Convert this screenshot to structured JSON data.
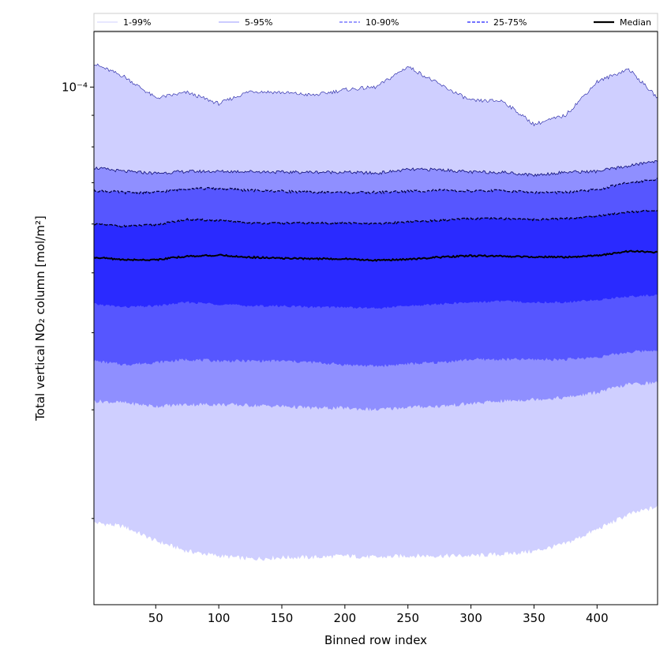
{
  "chart_data": {
    "type": "area",
    "xlabel": "Binned row index",
    "ylabel": "Total vertical NO₂ column [mol/m²]",
    "y_scale": "log",
    "x_range": [
      1,
      448
    ],
    "xticks": [
      50,
      100,
      150,
      200,
      250,
      300,
      350,
      400
    ],
    "y_range": [
      1.45e-05,
      0.000123
    ],
    "y_major_tick_labels": [
      {
        "value": 0.0001,
        "label": "10⁻⁴"
      }
    ],
    "y_minor_ticks": [
      2e-05,
      3e-05,
      4e-05,
      5e-05,
      6e-05,
      7e-05,
      8e-05,
      9e-05
    ],
    "grid": false,
    "legend_placement": "top, spanning full width",
    "legend": [
      {
        "label": "1-99%",
        "color": "#cfcfff",
        "style": "solid-thin"
      },
      {
        "label": "5-95%",
        "color": "#9a9aff",
        "style": "solid-thin"
      },
      {
        "label": "10-90%",
        "color": "#7a7aff",
        "style": "dashed"
      },
      {
        "label": "25-75%",
        "color": "#4444ff",
        "style": "dashed"
      },
      {
        "label": "Median",
        "color": "#000000",
        "style": "solid-thick"
      }
    ],
    "x": [
      1,
      25,
      50,
      75,
      100,
      125,
      150,
      175,
      200,
      225,
      250,
      275,
      300,
      325,
      350,
      375,
      400,
      425,
      448
    ],
    "bands": [
      {
        "name": "1-99%",
        "fill": "#cfcfff",
        "lower": [
          1.97e-05,
          1.94e-05,
          1.84e-05,
          1.77e-05,
          1.74e-05,
          1.72e-05,
          1.73e-05,
          1.73e-05,
          1.74e-05,
          1.73e-05,
          1.74e-05,
          1.74e-05,
          1.74e-05,
          1.75e-05,
          1.77e-05,
          1.82e-05,
          1.92e-05,
          2.03e-05,
          2.09e-05
        ],
        "upper": [
          0.000109,
          0.000104,
          9.6e-05,
          9.8e-05,
          9.4e-05,
          9.85e-05,
          9.8e-05,
          9.7e-05,
          9.9e-05,
          0.0001,
          0.000108,
          0.000101,
          9.5e-05,
          9.5e-05,
          8.7e-05,
          9e-05,
          0.000102,
          0.000107,
          9.6e-05
        ]
      },
      {
        "name": "5-95%",
        "fill": "#8f8fff",
        "lower": [
          3.1e-05,
          3.08e-05,
          3.04e-05,
          3.06e-05,
          3.06e-05,
          3.05e-05,
          3.04e-05,
          3.02e-05,
          3.02e-05,
          3e-05,
          3.03e-05,
          3.04e-05,
          3.07e-05,
          3.1e-05,
          3.12e-05,
          3.14e-05,
          3.2e-05,
          3.3e-05,
          3.32e-05
        ],
        "upper": [
          7.4e-05,
          7.3e-05,
          7.25e-05,
          7.3e-05,
          7.3e-05,
          7.3e-05,
          7.28e-05,
          7.28e-05,
          7.28e-05,
          7.25e-05,
          7.35e-05,
          7.35e-05,
          7.28e-05,
          7.28e-05,
          7.2e-05,
          7.28e-05,
          7.3e-05,
          7.45e-05,
          7.6e-05
        ]
      },
      {
        "name": "10-90%",
        "fill": "#5656ff",
        "lower": [
          3.6e-05,
          3.55e-05,
          3.58e-05,
          3.62e-05,
          3.6e-05,
          3.6e-05,
          3.6e-05,
          3.58e-05,
          3.55e-05,
          3.53e-05,
          3.56e-05,
          3.58e-05,
          3.62e-05,
          3.62e-05,
          3.62e-05,
          3.62e-05,
          3.65e-05,
          3.72e-05,
          3.75e-05
        ],
        "upper": [
          6.8e-05,
          6.75e-05,
          6.75e-05,
          6.85e-05,
          6.85e-05,
          6.8e-05,
          6.78e-05,
          6.75e-05,
          6.75e-05,
          6.75e-05,
          6.78e-05,
          6.8e-05,
          6.78e-05,
          6.8e-05,
          6.75e-05,
          6.75e-05,
          6.82e-05,
          7e-05,
          7.1e-05
        ]
      },
      {
        "name": "25-75%",
        "fill": "#2a2aff",
        "lower": [
          4.45e-05,
          4.4e-05,
          4.42e-05,
          4.48e-05,
          4.45e-05,
          4.42e-05,
          4.42e-05,
          4.4e-05,
          4.4e-05,
          4.38e-05,
          4.42e-05,
          4.45e-05,
          4.48e-05,
          4.5e-05,
          4.48e-05,
          4.48e-05,
          4.52e-05,
          4.58e-05,
          4.6e-05
        ],
        "upper": [
          6e-05,
          5.95e-05,
          5.98e-05,
          6.1e-05,
          6.08e-05,
          6.02e-05,
          6.02e-05,
          6.02e-05,
          6.02e-05,
          6e-05,
          6.05e-05,
          6.08e-05,
          6.12e-05,
          6.12e-05,
          6.1e-05,
          6.12e-05,
          6.18e-05,
          6.28e-05,
          6.3e-05
        ]
      }
    ],
    "median": {
      "name": "Median",
      "color": "#000000",
      "values": [
        5.3e-05,
        5.25e-05,
        5.25e-05,
        5.32e-05,
        5.34e-05,
        5.3e-05,
        5.28e-05,
        5.27e-05,
        5.27e-05,
        5.24e-05,
        5.26e-05,
        5.3e-05,
        5.33e-05,
        5.32e-05,
        5.31e-05,
        5.3e-05,
        5.33e-05,
        5.42e-05,
        5.4e-05
      ]
    },
    "band_edge_lines": [
      {
        "band": "1-99%",
        "edge": "upper",
        "color": "#1a1aa0",
        "width": 0.6,
        "dash": ""
      },
      {
        "band": "5-95%",
        "edge": "upper",
        "color": "#1a1a80",
        "width": 0.9,
        "dash": ""
      },
      {
        "band": "10-90%",
        "edge": "upper",
        "color": "#000040",
        "width": 1.3,
        "dash": "4,2"
      },
      {
        "band": "25-75%",
        "edge": "upper",
        "color": "#000020",
        "width": 1.4,
        "dash": "5,2"
      }
    ]
  }
}
